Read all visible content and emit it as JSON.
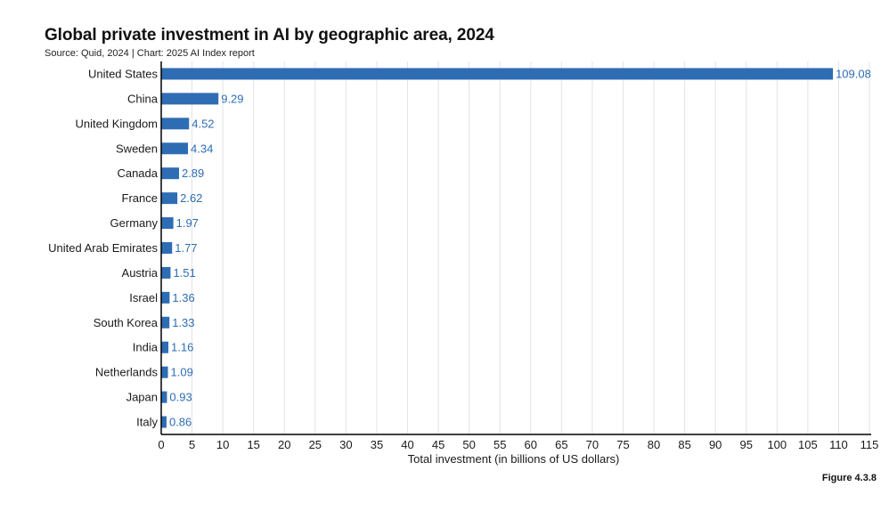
{
  "colors": {
    "bar": "#2e6db4",
    "value_label": "#2e6db4",
    "grid": "#e3e3e3",
    "axis": "#000000"
  },
  "figure_label": "Figure 4.3.8",
  "chart_data": {
    "type": "bar",
    "orientation": "horizontal",
    "title": "Global private investment in AI by geographic area, 2024",
    "subtitle": "Source: Quid, 2024 | Chart: 2025 AI Index report",
    "xlabel": "Total investment (in billions of US dollars)",
    "ylabel": "",
    "categories": [
      "United States",
      "China",
      "United Kingdom",
      "Sweden",
      "Canada",
      "France",
      "Germany",
      "United Arab Emirates",
      "Austria",
      "Israel",
      "South Korea",
      "India",
      "Netherlands",
      "Japan",
      "Italy"
    ],
    "values": [
      109.08,
      9.29,
      4.52,
      4.34,
      2.89,
      2.62,
      1.97,
      1.77,
      1.51,
      1.36,
      1.33,
      1.16,
      1.09,
      0.93,
      0.86
    ],
    "value_labels": [
      "109.08",
      "9.29",
      "4.52",
      "4.34",
      "2.89",
      "2.62",
      "1.97",
      "1.77",
      "1.51",
      "1.36",
      "1.33",
      "1.16",
      "1.09",
      "0.93",
      "0.86"
    ],
    "xlim": [
      0,
      115
    ],
    "xticks": [
      0,
      5,
      10,
      15,
      20,
      25,
      30,
      35,
      40,
      45,
      50,
      55,
      60,
      65,
      70,
      75,
      80,
      85,
      90,
      95,
      100,
      105,
      110,
      115
    ],
    "grid": true,
    "legend": "none"
  }
}
